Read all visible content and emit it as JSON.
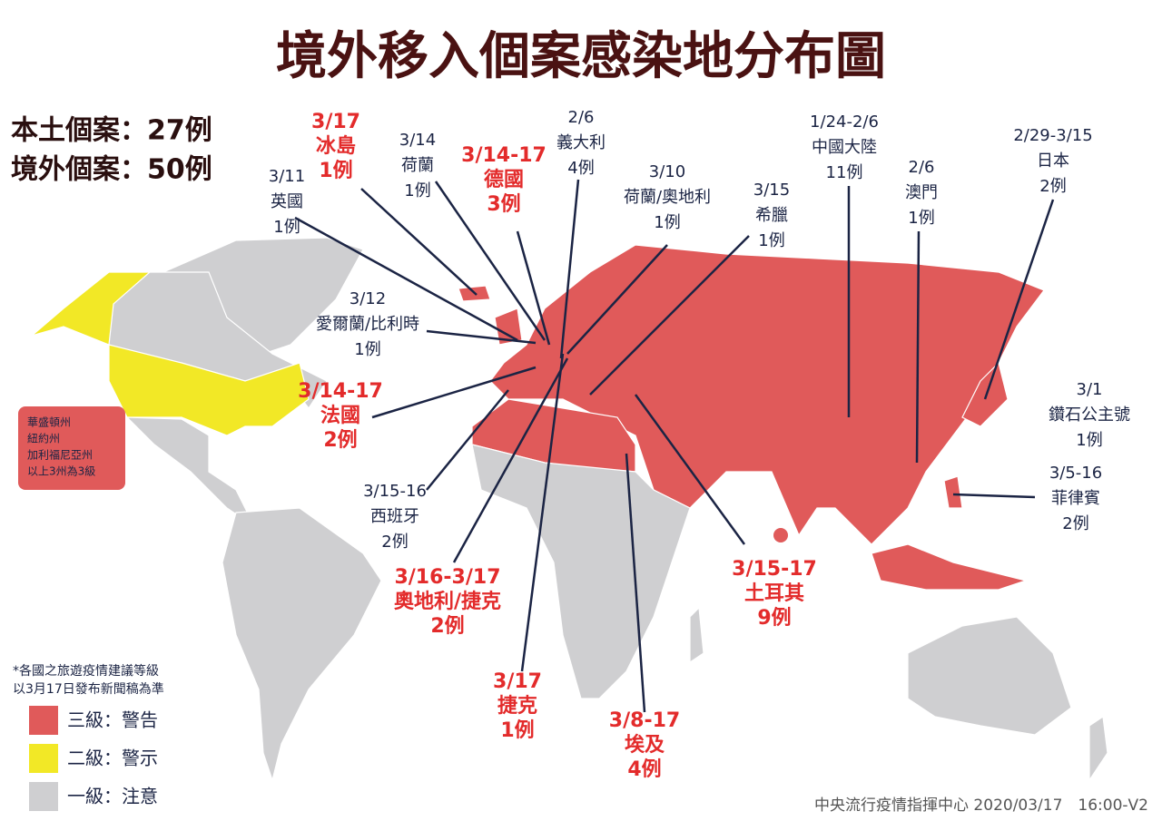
{
  "title": "境外移入個案感染地分布圖",
  "summary": [
    "本土個案：27例",
    "境外個案：50例"
  ],
  "callouts": [
    {
      "date": "3/17",
      "place": "冰島",
      "count": "1例",
      "color": "#e32b2b"
    },
    {
      "date": "3/14",
      "place": "荷蘭",
      "count": "1例",
      "color": "#1b2444"
    },
    {
      "date": "3/14-17",
      "place": "德國",
      "count": "3例",
      "color": "#e32b2b"
    },
    {
      "date": "2/6",
      "place": "義大利",
      "count": "4例",
      "color": "#1b2444"
    },
    {
      "date": "3/10",
      "place": "荷蘭/奧地利",
      "count": "1例",
      "color": "#1b2444"
    },
    {
      "date": "3/11",
      "place": "英國",
      "count": "1例",
      "color": "#1b2444"
    },
    {
      "date": "3/15",
      "place": "希臘",
      "count": "1例",
      "color": "#1b2444"
    },
    {
      "date": "1/24-2/6",
      "place": "中國大陸",
      "count": "11例",
      "color": "#1b2444"
    },
    {
      "date": "2/6",
      "place": "澳門",
      "count": "1例",
      "color": "#1b2444"
    },
    {
      "date": "2/29-3/15",
      "place": "日本",
      "count": "2例",
      "color": "#1b2444"
    },
    {
      "date": "3/12",
      "place": "愛爾蘭/比利時",
      "count": "1例",
      "color": "#1b2444"
    },
    {
      "date": "3/14-17",
      "place": "法國",
      "count": "2例",
      "color": "#e32b2b"
    },
    {
      "date": "3/1",
      "place": "鑽石公主號",
      "count": "1例",
      "color": "#1b2444"
    },
    {
      "date": "3/5-16",
      "place": "菲律賓",
      "count": "2例",
      "color": "#1b2444"
    },
    {
      "date": "3/15-16",
      "place": "西班牙",
      "count": "2例",
      "color": "#1b2444"
    },
    {
      "date": "3/16-3/17",
      "place": "奧地利/捷克",
      "count": "2例",
      "color": "#e32b2b"
    },
    {
      "date": "3/15-17",
      "place": "土耳其",
      "count": "9例",
      "color": "#e32b2b"
    },
    {
      "date": "3/17",
      "place": "捷克",
      "count": "1例",
      "color": "#e32b2b"
    },
    {
      "date": "3/8-17",
      "place": "埃及",
      "count": "4例",
      "color": "#e32b2b"
    }
  ],
  "us_note": [
    "華盛頓州",
    "紐約州",
    "加利福尼亞州",
    "以上3州為3級"
  ],
  "footnote": [
    "*各國之旅遊疫情建議等級",
    "以3月17日發布新聞稿為準"
  ],
  "legend": [
    {
      "label": "三級：警告",
      "color": "#e05a5a"
    },
    {
      "label": "二級：警示",
      "color": "#f2e826"
    },
    {
      "label": "一級：注意",
      "color": "#cfcfd1"
    }
  ],
  "source": "中央流行疫情指揮中心 2020/03/17　16:00-V2"
}
